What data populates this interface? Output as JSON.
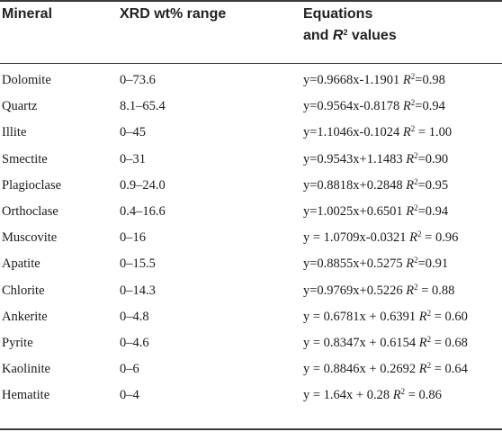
{
  "table": {
    "headers": {
      "mineral": "Mineral",
      "range": "XRD wt% range",
      "equations_line1": "Equations",
      "equations_line2_prefix": "and ",
      "equations_line2_r": "R",
      "equations_line2_sup": "2",
      "equations_line2_suffix": " values"
    },
    "rows": [
      {
        "mineral": "Dolomite",
        "range": "0–73.6",
        "eq": "y=0.9668x-1.1901 ",
        "r2_sep": "=",
        "r2": "0.98"
      },
      {
        "mineral": "Quartz",
        "range": "8.1–65.4",
        "eq": "y=0.9564x-0.8178 ",
        "r2_sep": "=",
        "r2": "0.94"
      },
      {
        "mineral": "Illite",
        "range": "0–45",
        "eq": "y=1.1046x-0.1024 ",
        "r2_sep": " = ",
        "r2": "1.00"
      },
      {
        "mineral": "Smectite",
        "range": "0–31",
        "eq": "y=0.9543x+1.1483 ",
        "r2_sep": "=",
        "r2": "0.90"
      },
      {
        "mineral": "Plagioclase",
        "range": "0.9–24.0",
        "eq": "y=0.8818x+0.2848 ",
        "r2_sep": "=",
        "r2": "0.95"
      },
      {
        "mineral": "Orthoclase",
        "range": "0.4–16.6",
        "eq": "y=1.0025x+0.6501 ",
        "r2_sep": "=",
        "r2": "0.94"
      },
      {
        "mineral": "Muscovite",
        "range": "0–16",
        "eq": "y = 1.0709x-0.0321 ",
        "r2_sep": " = ",
        "r2": "0.96"
      },
      {
        "mineral": "Apatite",
        "range": "0–15.5",
        "eq": "y=0.8855x+0.5275 ",
        "r2_sep": "=",
        "r2": "0.91"
      },
      {
        "mineral": "Chlorite",
        "range": "0–14.3",
        "eq": "y=0.9769x+0.5226 ",
        "r2_sep": " = ",
        "r2": "0.88"
      },
      {
        "mineral": "Ankerite",
        "range": "0–4.8",
        "eq": "y = 0.6781x + 0.6391 ",
        "r2_sep": " = ",
        "r2": "0.60"
      },
      {
        "mineral": "Pyrite",
        "range": "0–4.6",
        "eq": "y = 0.8347x + 0.6154 ",
        "r2_sep": " = ",
        "r2": "0.68"
      },
      {
        "mineral": "Kaolinite",
        "range": "0–6",
        "eq": "y = 0.8846x + 0.2692 ",
        "r2_sep": " = ",
        "r2": "0.64"
      },
      {
        "mineral": "Hematite",
        "range": "0–4",
        "eq": "y = 1.64x + 0.28 ",
        "r2_sep": " = ",
        "r2": "0.86"
      }
    ]
  }
}
